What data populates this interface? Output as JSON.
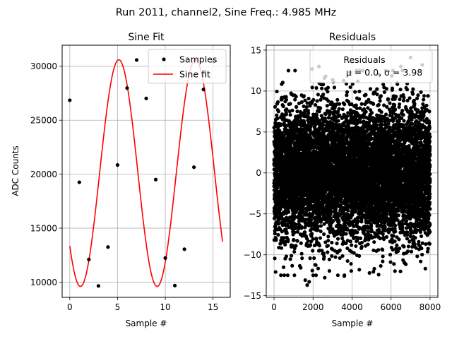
{
  "suptitle": "Run 2011, channel2, Sine Freq.: 4.985 MHz",
  "chart_data": [
    {
      "type": "line",
      "title": "Sine Fit",
      "xlabel": "Sample #",
      "ylabel": "ADC Counts",
      "xlim": [
        -0.8,
        16.8
      ],
      "ylim": [
        8590,
        31950
      ],
      "xticks": [
        0,
        5,
        10,
        15
      ],
      "yticks": [
        10000,
        15000,
        20000,
        25000,
        30000
      ],
      "grid": true,
      "legend_position": "top-right",
      "fit": {
        "amplitude": 10500,
        "offset": 20100,
        "period": 8.03,
        "x_range": [
          0,
          16
        ]
      },
      "series": [
        {
          "name": "Samples",
          "kind": "scatter",
          "color": "#000000",
          "x": [
            0,
            1,
            2,
            3,
            4,
            5,
            6,
            7,
            8,
            9,
            10,
            11,
            12,
            13,
            14,
            15
          ],
          "y": [
            26850,
            19250,
            12100,
            9650,
            13250,
            20850,
            27980,
            30580,
            27020,
            19500,
            12230,
            9680,
            13050,
            20650,
            27850,
            30450
          ]
        },
        {
          "name": "Sine fit",
          "kind": "line",
          "color": "#ff0000"
        }
      ]
    },
    {
      "type": "scatter",
      "title": "Residuals",
      "xlabel": "Sample #",
      "ylabel": "",
      "xlim": [
        -400,
        8400
      ],
      "ylim": [
        -15.2,
        15.6
      ],
      "xticks": [
        0,
        2000,
        4000,
        6000,
        8000
      ],
      "yticks": [
        -15,
        -10,
        -5,
        0,
        5,
        10,
        15
      ],
      "grid": true,
      "legend_position": "top-right",
      "color": "#000000",
      "mean": 0.0,
      "std": 3.98,
      "n_points": 8000,
      "series": [
        {
          "name": "Residuals"
        }
      ],
      "legend_stats_label": "μ = 0.0, σ = 3.98",
      "outliers": [
        {
          "x": 1700,
          "y": -13.7
        },
        {
          "x": 1950,
          "y": 12.7
        },
        {
          "x": 2300,
          "y": 13.0
        },
        {
          "x": 7000,
          "y": 14.1
        },
        {
          "x": 7600,
          "y": 13.2
        },
        {
          "x": 3600,
          "y": -12.6
        },
        {
          "x": 1600,
          "y": -13.1
        },
        {
          "x": 700,
          "y": -12.5
        },
        {
          "x": 1800,
          "y": -13.3
        },
        {
          "x": 6500,
          "y": 13.0
        },
        {
          "x": 3900,
          "y": 12.3
        },
        {
          "x": 6200,
          "y": -12.0
        },
        {
          "x": 2600,
          "y": -12.8
        },
        {
          "x": 5400,
          "y": 12.0
        },
        {
          "x": 80,
          "y": -12.1
        }
      ]
    }
  ]
}
